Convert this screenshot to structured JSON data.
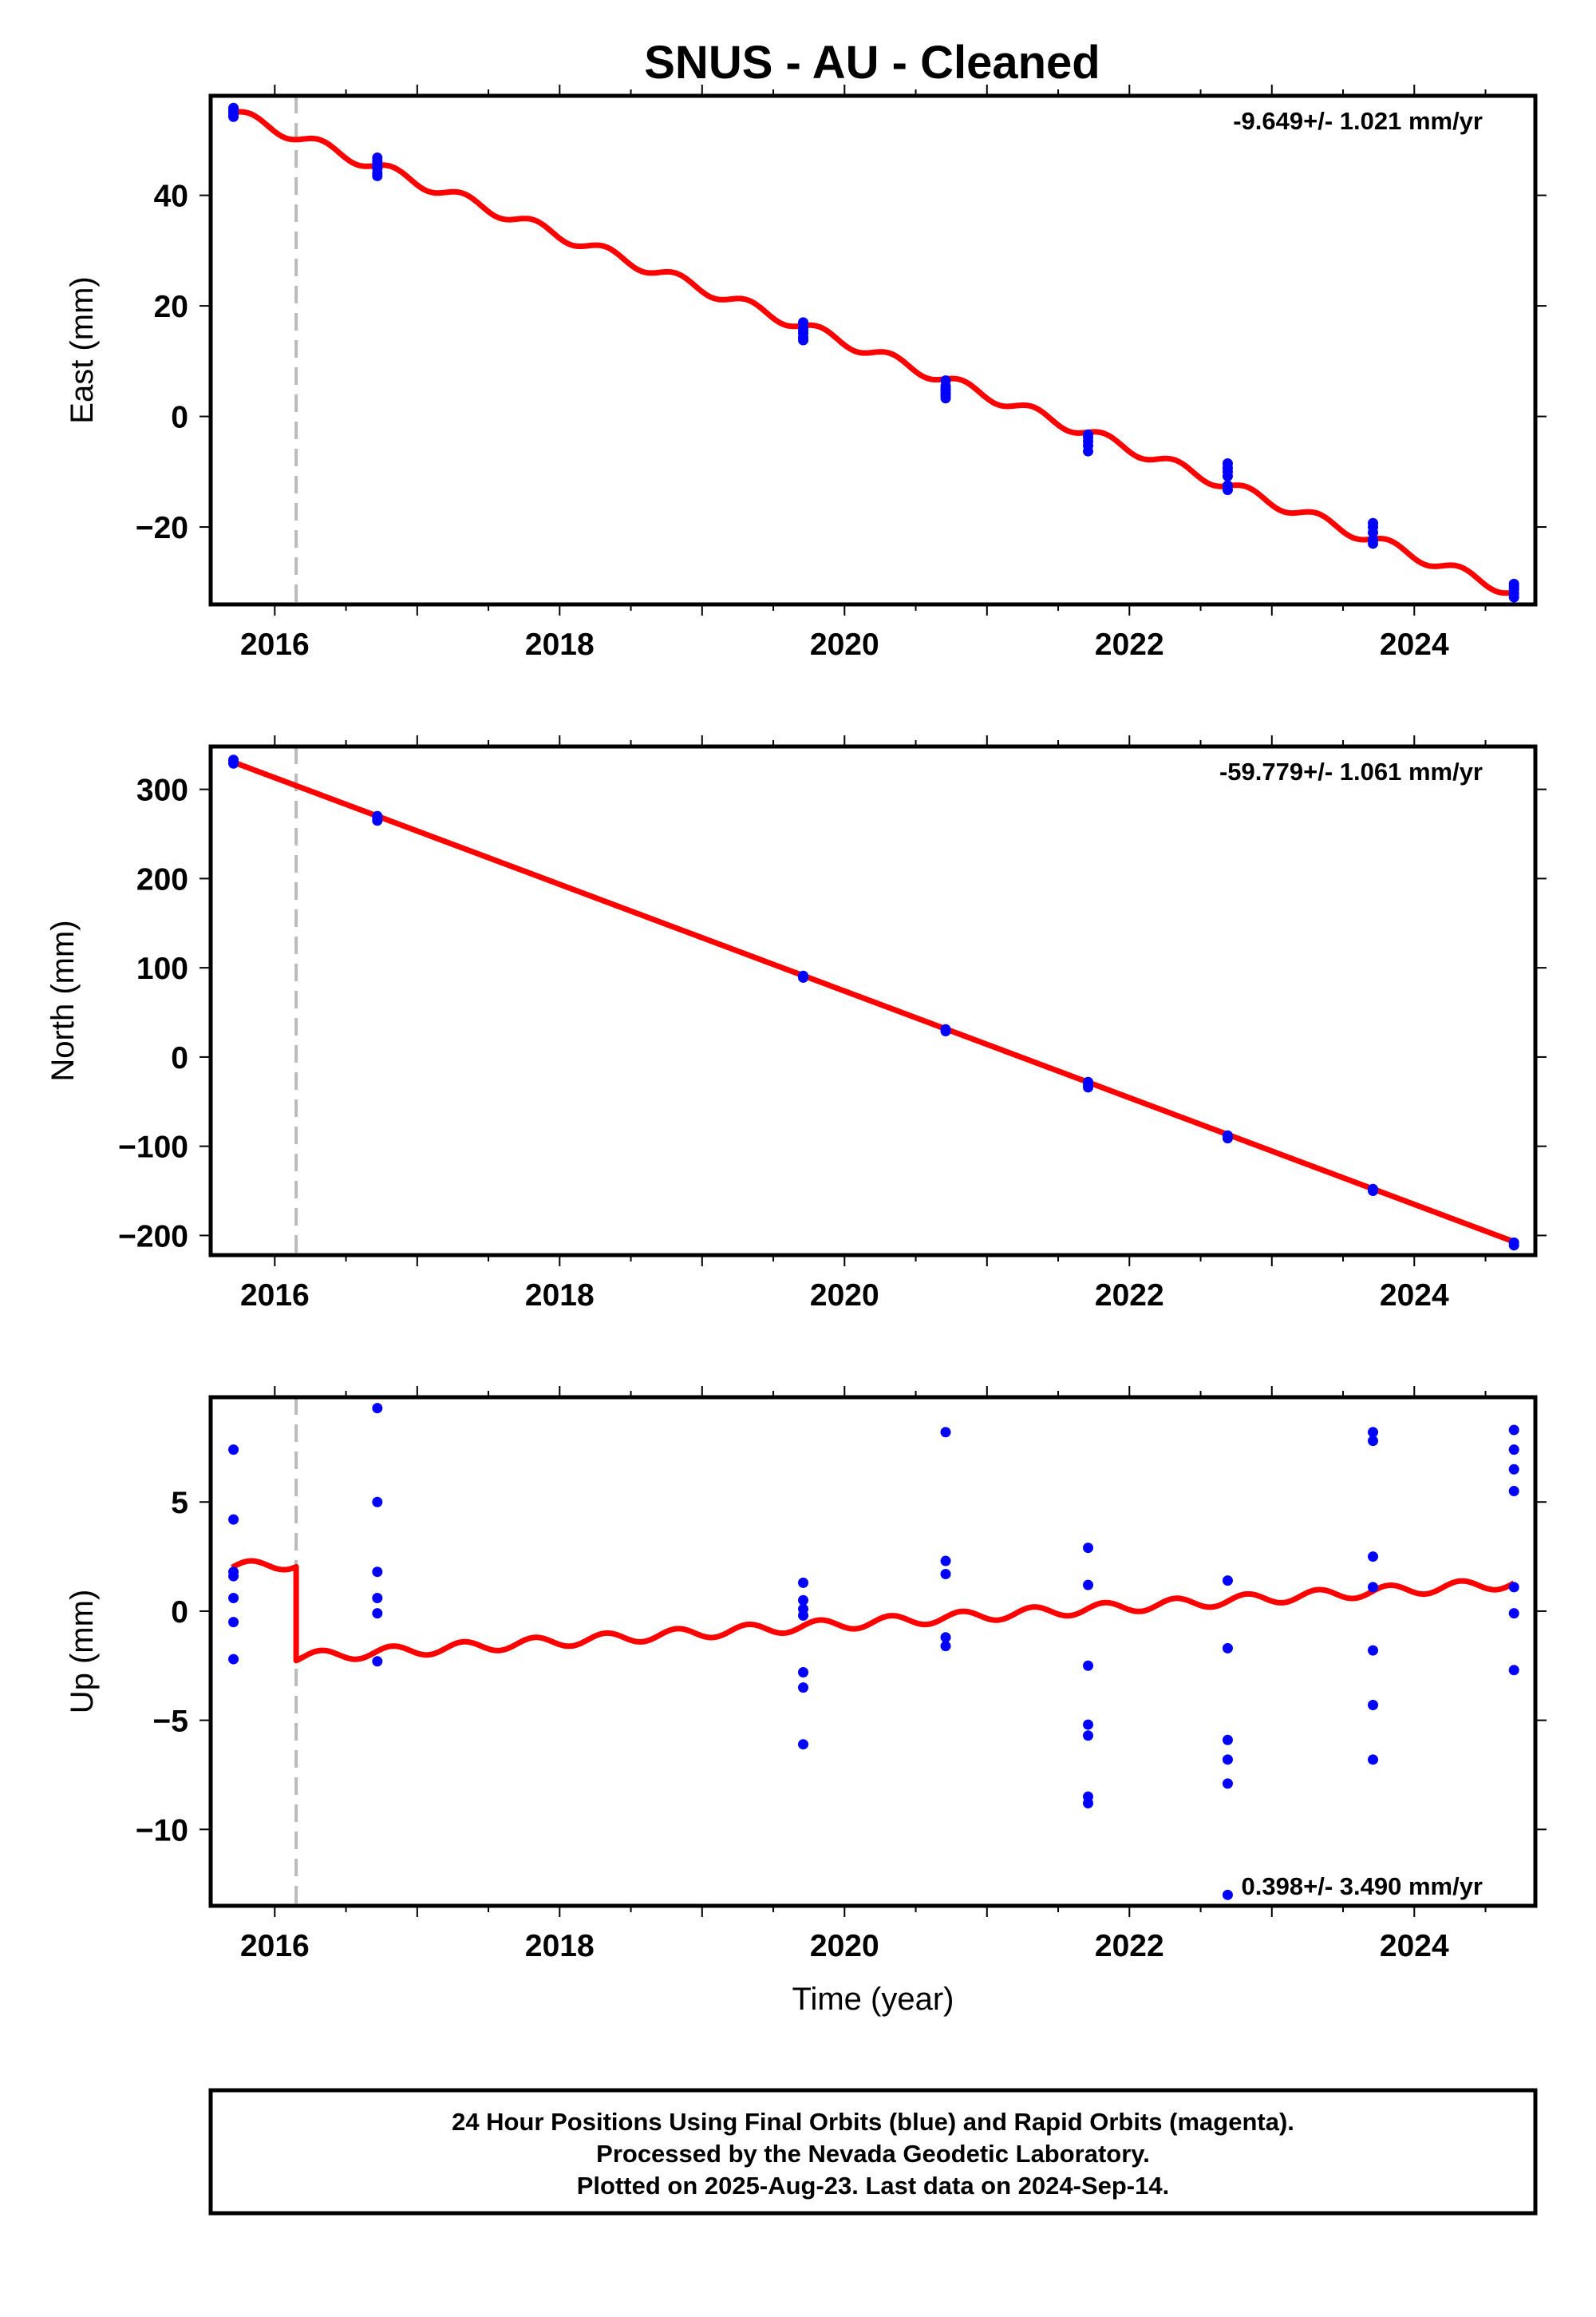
{
  "title": "SNUS  - AU - Cleaned",
  "colors": {
    "data": "#0000ff",
    "model": "#ff0000",
    "break_line": "#bbbbbb",
    "frame": "#000000"
  },
  "footer": {
    "line1": "24 Hour Positions Using Final Orbits (blue) and Rapid Orbits (magenta).",
    "line2": "Processed by the Nevada Geodetic Laboratory.",
    "line3": "Plotted on 2025-Aug-23. Last data on 2024-Sep-14."
  },
  "chart_data": [
    {
      "type": "scatter",
      "ylabel": "East (mm)",
      "xlabel": "",
      "rate": "-9.649+/- 1.021 mm/yr",
      "xlim": [
        2015.55,
        2024.85
      ],
      "ylim": [
        -34,
        58
      ],
      "xticks": [
        2016,
        2018,
        2020,
        2022,
        2024
      ],
      "xtick_labels": [
        "2016",
        "2018",
        "2020",
        "2022",
        "2024"
      ],
      "yticks": [
        -20,
        0,
        20,
        40
      ],
      "ytick_labels": [
        "−20",
        "0",
        "20",
        "40"
      ],
      "break_epoch": 2016.15,
      "model": {
        "start": 2015.7,
        "end": 2024.7,
        "intercept": 55.0,
        "slope": -9.649,
        "seasonal_amp": 1.0,
        "offset": 0
      },
      "series": [
        {
          "x": [
            2015.71,
            2015.71,
            2015.71,
            2015.71,
            2015.71,
            2015.71,
            2016.72,
            2016.72,
            2016.72,
            2016.72,
            2016.72,
            2016.72,
            2016.72,
            2019.71,
            2019.71,
            2019.71,
            2019.71,
            2019.71,
            2019.71,
            2020.71,
            2020.71,
            2020.71,
            2020.71,
            2020.71,
            2020.71,
            2020.71,
            2021.71,
            2021.71,
            2021.71,
            2021.71,
            2021.71,
            2022.69,
            2022.69,
            2022.69,
            2022.69,
            2022.69,
            2022.69,
            2023.71,
            2023.71,
            2023.71,
            2023.71,
            2023.71,
            2024.7,
            2024.7,
            2024.7,
            2024.7,
            2024.7
          ],
          "y": [
            55.8,
            55.4,
            55.1,
            54.5,
            54.2,
            54.9,
            46.8,
            46.2,
            45.5,
            44.8,
            44.0,
            43.5,
            45.0,
            17.0,
            16.0,
            15.0,
            14.3,
            13.8,
            15.5,
            6.5,
            5.5,
            5.0,
            4.3,
            3.8,
            3.3,
            4.8,
            -3.3,
            -3.8,
            -4.5,
            -5.3,
            -6.3,
            -8.5,
            -9.3,
            -10.0,
            -10.8,
            -12.5,
            -13.3,
            -19.3,
            -20.0,
            -21.0,
            -22.3,
            -23.0,
            -30.3,
            -30.8,
            -31.3,
            -32.0,
            -32.7
          ]
        }
      ]
    },
    {
      "type": "scatter",
      "ylabel": "North (mm)",
      "xlabel": "",
      "rate": "-59.779+/- 1.061 mm/yr",
      "xlim": [
        2015.55,
        2024.85
      ],
      "ylim": [
        -222,
        348
      ],
      "xticks": [
        2016,
        2018,
        2020,
        2022,
        2024
      ],
      "xtick_labels": [
        "2016",
        "2018",
        "2020",
        "2022",
        "2024"
      ],
      "yticks": [
        -200,
        -100,
        0,
        100,
        200,
        300
      ],
      "ytick_labels": [
        "−200",
        "−100",
        "0",
        "100",
        "200",
        "300"
      ],
      "break_epoch": 2016.15,
      "model": {
        "start": 2015.7,
        "end": 2024.7,
        "intercept": 331.0,
        "slope": -59.779,
        "seasonal_amp": 0,
        "offset": 0
      },
      "series": [
        {
          "x": [
            2015.71,
            2015.71,
            2015.71,
            2016.72,
            2016.72,
            2016.72,
            2019.71,
            2019.71,
            2020.71,
            2020.71,
            2021.71,
            2021.71,
            2021.71,
            2022.69,
            2022.69,
            2023.71,
            2023.71,
            2024.7,
            2024.7
          ],
          "y": [
            333,
            331,
            329,
            270,
            268,
            265,
            91,
            89,
            31,
            29,
            -28,
            -31,
            -34,
            -88,
            -91,
            -148,
            -150,
            -208,
            -211
          ]
        }
      ]
    },
    {
      "type": "scatter",
      "ylabel": "Up (mm)",
      "xlabel": "Time (year)",
      "rate": "0.398+/- 3.490 mm/yr",
      "xlim": [
        2015.55,
        2024.85
      ],
      "ylim": [
        -13.5,
        9.8
      ],
      "xticks": [
        2016,
        2018,
        2020,
        2022,
        2024
      ],
      "xtick_labels": [
        "2016",
        "2018",
        "2020",
        "2022",
        "2024"
      ],
      "yticks": [
        -10,
        -5,
        0,
        5
      ],
      "ytick_labels": [
        "−10",
        "−5",
        "0",
        "5"
      ],
      "break_epoch": 2016.15,
      "model": {
        "start": 2015.7,
        "end": 2024.7,
        "intercept": 2.0,
        "slope": 0.398,
        "seasonal_amp": 0.25,
        "offset": -4.3
      },
      "series": [
        {
          "x": [
            2015.71,
            2015.71,
            2015.71,
            2015.71,
            2015.71,
            2015.71,
            2015.71,
            2016.72,
            2016.72,
            2016.72,
            2016.72,
            2016.72,
            2016.72,
            2019.71,
            2019.71,
            2019.71,
            2019.71,
            2019.71,
            2019.71,
            2019.71,
            2020.71,
            2020.71,
            2020.71,
            2020.71,
            2020.71,
            2021.71,
            2021.71,
            2021.71,
            2021.71,
            2021.71,
            2021.71,
            2021.71,
            2022.69,
            2022.69,
            2022.69,
            2022.69,
            2022.69,
            2022.69,
            2023.71,
            2023.71,
            2023.71,
            2023.71,
            2023.71,
            2023.71,
            2023.71,
            2024.7,
            2024.7,
            2024.7,
            2024.7,
            2024.7,
            2024.7,
            2024.7
          ],
          "y": [
            7.4,
            4.2,
            1.8,
            0.6,
            -0.5,
            -2.2,
            1.6,
            9.3,
            5.0,
            1.8,
            0.6,
            -0.1,
            -2.3,
            1.3,
            0.5,
            0.1,
            -0.2,
            -2.8,
            -3.5,
            -6.1,
            8.2,
            2.3,
            1.7,
            -1.2,
            -1.6,
            2.9,
            1.2,
            -2.5,
            -5.2,
            -5.7,
            -8.5,
            -8.8,
            1.4,
            -1.7,
            -5.9,
            -6.8,
            -7.9,
            -13.0,
            8.2,
            7.8,
            2.5,
            1.1,
            -1.8,
            -4.3,
            -6.8,
            8.3,
            7.4,
            6.5,
            5.5,
            1.1,
            -0.1,
            -2.7
          ]
        }
      ]
    }
  ]
}
